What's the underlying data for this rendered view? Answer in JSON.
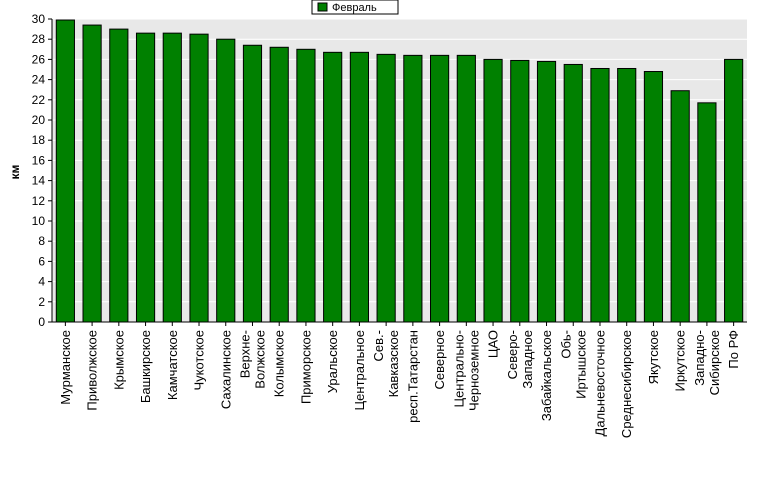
{
  "chart_data": {
    "type": "bar",
    "title": "",
    "xlabel": "",
    "ylabel": "км",
    "ylim": [
      0,
      30
    ],
    "ytick_step": 2,
    "grid": true,
    "legend_position": "top-center",
    "categories": [
      "Мурманское",
      "Приволжское",
      "Крымское",
      "Башкирское",
      "Камчатское",
      "Чукотское",
      "Сахалинское",
      "Верхне-\nВолжское",
      "Колымское",
      "Приморское",
      "Уральское",
      "Центральное",
      "Сев.-\nКавказское",
      "респ.Татарстан",
      "Северное",
      "Центрально-\nЧерноземное",
      "ЦАО",
      "Северо-\nЗападное",
      "Забайкальское",
      "Обь-\nИртышское",
      "Дальневосточное",
      "Среднесибирское",
      "Якутское",
      "Иркутское",
      "Западно-\nСибирское",
      "По РФ"
    ],
    "series": [
      {
        "name": "Февраль",
        "color": "#008000",
        "values": [
          29.9,
          29.4,
          29.0,
          28.6,
          28.6,
          28.5,
          28.0,
          27.4,
          27.2,
          27.0,
          26.7,
          26.7,
          26.5,
          26.4,
          26.4,
          26.4,
          26.0,
          25.9,
          25.8,
          25.5,
          25.1,
          25.1,
          24.8,
          22.9,
          21.7,
          26.0
        ]
      }
    ]
  },
  "colors": {
    "plot_background": "#e8e8e8",
    "bar_fill": "#008000",
    "bar_stroke": "#000000",
    "grid": "#ffffff"
  }
}
